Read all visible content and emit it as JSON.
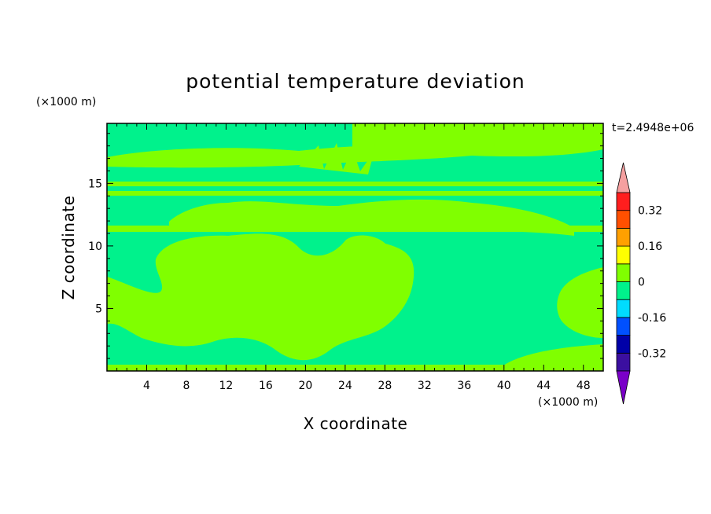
{
  "chart_data": {
    "type": "heatmap",
    "title": "potential temperature deviation",
    "xlabel": "X coordinate",
    "ylabel": "Z coordinate",
    "x_unit": "(×1000 m)",
    "y_unit": "(×1000 m)",
    "time_label": "t=2.4948e+06",
    "xlim": [
      0,
      50
    ],
    "ylim": [
      0,
      19.8
    ],
    "x_ticks": [
      4,
      8,
      12,
      16,
      20,
      24,
      28,
      32,
      36,
      40,
      44,
      48
    ],
    "y_ticks": [
      5,
      10,
      15
    ],
    "colorbar": {
      "bounds": [
        -0.4,
        -0.32,
        -0.24,
        -0.16,
        -0.08,
        0,
        0.08,
        0.16,
        0.24,
        0.32,
        0.4
      ],
      "colors": [
        "#3b0fa0",
        "#0000a8",
        "#0050ff",
        "#00dcff",
        "#00f28c",
        "#80ff00",
        "#ffff00",
        "#ffa000",
        "#ff5000",
        "#ff1e1e"
      ],
      "over_color": "#f5a0a0",
      "under_color": "#7a00c8",
      "labels": [
        "0.32",
        "0.16",
        "0",
        "-0.16",
        "-0.32"
      ],
      "label_values": [
        0.32,
        0.16,
        0,
        -0.16,
        -0.32
      ]
    },
    "field_colors": {
      "negative": "#00f28c",
      "positive": "#80ff00"
    }
  }
}
